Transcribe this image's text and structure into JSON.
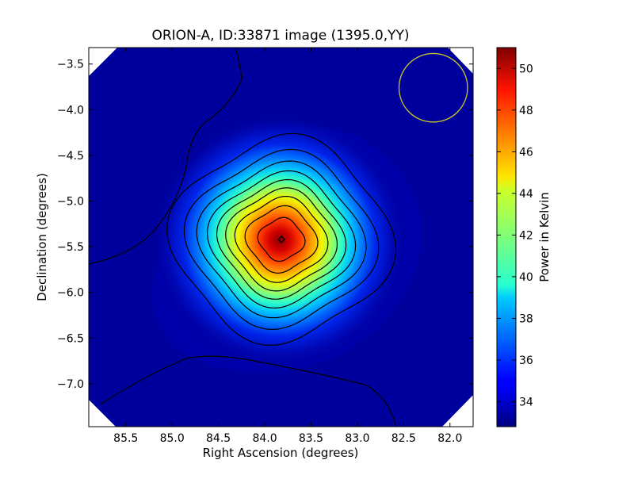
{
  "chart_data": {
    "type": "heatmap",
    "title": "ORION-A, ID:33871 image (1395.0,YY)",
    "xlabel": "Right Ascension (degrees)",
    "ylabel": "Declination (degrees)",
    "xlim": [
      85.9,
      81.75
    ],
    "ylim": [
      -7.47,
      -3.32
    ],
    "x_reversed": true,
    "x_ticks": [
      85.5,
      85.0,
      84.5,
      84.0,
      83.5,
      83.0,
      82.5,
      82.0
    ],
    "x_tick_labels": [
      "85.5",
      "85.0",
      "84.5",
      "84.0",
      "83.5",
      "83.0",
      "82.5",
      "82.0"
    ],
    "y_ticks": [
      -3.5,
      -4.0,
      -4.5,
      -5.0,
      -5.5,
      -6.0,
      -6.5,
      -7.0
    ],
    "y_tick_labels": [
      "−3.5",
      "−4.0",
      "−4.5",
      "−5.0",
      "−5.5",
      "−6.0",
      "−6.5",
      "−7.0"
    ],
    "colorbar": {
      "label": "Power in Kelvin",
      "min": 32.8,
      "max": 51.0,
      "ticks": [
        34,
        36,
        38,
        40,
        42,
        44,
        46,
        48,
        50
      ],
      "tick_labels": [
        "34",
        "36",
        "38",
        "40",
        "42",
        "44",
        "46",
        "48",
        "50"
      ],
      "colormap": "jet"
    },
    "source": {
      "ra": 83.82,
      "dec": -5.42,
      "peak": 50.8,
      "background": 33.0
    },
    "contour_levels": [
      36.5,
      38.5,
      40.3,
      42.0,
      43.6,
      45.1,
      46.6,
      48.1,
      49.6
    ],
    "beam_circle": {
      "ra": 82.18,
      "dec": -3.76,
      "radius_deg": 0.37,
      "color": "#c8c828"
    },
    "marker": {
      "ra": 83.82,
      "dec": -5.42,
      "shape": "diamond"
    }
  }
}
